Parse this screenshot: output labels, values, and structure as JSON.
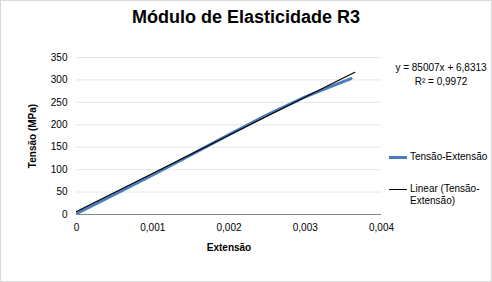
{
  "chart_data": {
    "type": "line",
    "title": "Módulo de Elasticidade R3",
    "x_label": "Extensão",
    "y_label": "Tensão (MPa)",
    "series": [
      {
        "name": "Tensão-Extensão",
        "color": "#4a7ebb",
        "line_style": "solid",
        "x": [
          0,
          0.0005,
          0.001,
          0.0015,
          0.002,
          0.0025,
          0.003,
          0.0033,
          0.0036
        ],
        "values": [
          2,
          45,
          88,
          133,
          178,
          222,
          262,
          283,
          303
        ]
      },
      {
        "name": "Linear (Tensão-Extensão)",
        "color": "#000000",
        "line_style": "solid",
        "x": [
          0,
          0.00365
        ],
        "values": [
          6.8,
          317.1
        ]
      }
    ],
    "annotations": [
      "y = 85007x + 6,8313",
      "R² = 0,9972"
    ],
    "xlim": [
      0,
      0.004
    ],
    "ylim": [
      0,
      350
    ],
    "xticks": [
      0,
      {
        "value": 0.001,
        "label": "0,001"
      },
      {
        "value": 0.002,
        "label": "0,002"
      },
      {
        "value": 0.003,
        "label": "0,003"
      },
      {
        "value": 0.004,
        "label": "0,004"
      }
    ],
    "yticks": [
      0,
      50,
      100,
      150,
      200,
      250,
      300,
      350
    ],
    "grid": true,
    "legend": "right"
  }
}
